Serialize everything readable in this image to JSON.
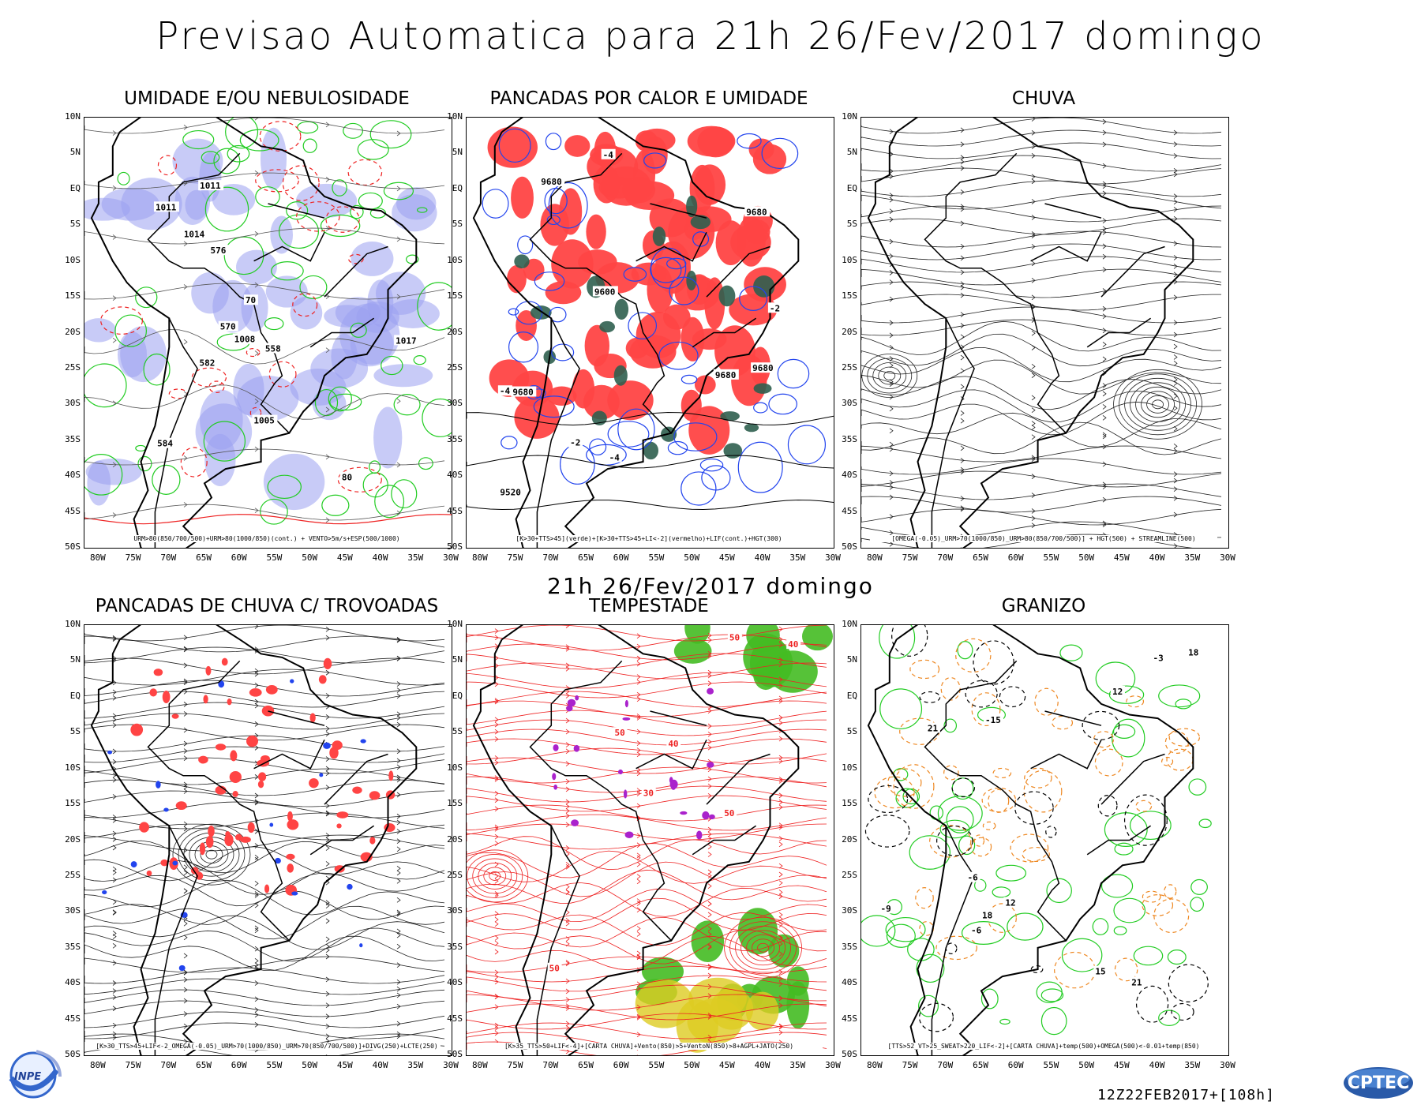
{
  "title": "Previsao Automatica  para 21h 26/Fev/2017 domingo",
  "subtitle": "21h 26/Fev/2017 domingo",
  "footer": "12Z22FEB2017+[108h]",
  "logos": {
    "left": "INPE",
    "right": "CPTEC"
  },
  "axes": {
    "lat_labels": [
      "10N",
      "5N",
      "EQ",
      "5S",
      "10S",
      "15S",
      "20S",
      "25S",
      "30S",
      "35S",
      "40S",
      "45S",
      "50S"
    ],
    "lon_labels": [
      "80W",
      "75W",
      "70W",
      "65W",
      "60W",
      "55W",
      "50W",
      "45W",
      "40W",
      "35W",
      "30W"
    ]
  },
  "colors": {
    "humidity_blue": "#9aa0f0",
    "contour_green": "#22cc22",
    "contour_red": "#ee2222",
    "heat_red": "#ff4444",
    "heat_darkgreen": "#2f5f4f",
    "blue_contour": "#2244ee",
    "storm_purple": "#aa22cc",
    "storm_green": "#44bb22",
    "jet_yellow": "#ddcc22",
    "hail_orange": "#ee8822"
  },
  "panels": [
    {
      "id": "umidade",
      "title": "UMIDADE E/OU NEBULOSIDADE",
      "legend": "URM>80(850/700/500)+URM>80(1000/850)(cont.) + VENTO>5m/s+ESP(500/1000)",
      "labels": [
        "576",
        "1011",
        "1008",
        "1014",
        "1017",
        "1005",
        "570",
        "582",
        "558",
        "584",
        "80",
        "70",
        "1011"
      ]
    },
    {
      "id": "pancadas_calor",
      "title": "PANCADAS POR CALOR E UMIDADE",
      "legend": "[K>30+TTS>45](verde)+[K>30+TTS>45+LI<-2](vermelho)+LIF(cont.)+HGT(300)",
      "labels": [
        "9680",
        "9680",
        "9680",
        "9680",
        "9680",
        "9600",
        "9520",
        "-4",
        "-2",
        "-4",
        "-2",
        "-4"
      ]
    },
    {
      "id": "chuva",
      "title": "CHUVA",
      "legend": "[OMEGA(-0.05)_URM>70(1000/850)_URM>80(850/700/500)] + HGT(500) + STREAMLINE(500)",
      "labels": []
    },
    {
      "id": "trovoadas",
      "title": "PANCADAS DE CHUVA C/ TROVOADAS",
      "legend": "[K>30_TTS>45+LIF<-2_OMEGA(-0.05)_URM>70(1000/850)_URM>70(850/700/500)]+DIVG(250)+LCTE(250)",
      "labels": []
    },
    {
      "id": "tempestade",
      "title": "TEMPESTADE",
      "legend": "[K>35_TTS>50+LIF<-4]+[CARTA CHUVA]+Vento(850)>5+VentoN(850)>8+AGPL+JATO(250)",
      "labels": [
        "50",
        "50",
        "40",
        "50",
        "40",
        "50",
        "30"
      ]
    },
    {
      "id": "granizo",
      "title": "GRANIZO",
      "legend": "[TTS>52_VT>25_SWEAT>220_LIF<-2]+[CARTA CHUVA]+temp(500)+OMEGA(500)<-0.01+temp(850)",
      "labels": [
        "-6",
        "18",
        "15",
        "21",
        "-3",
        "12",
        "-9",
        "-6",
        "18",
        "21",
        "-15",
        "12"
      ]
    }
  ]
}
